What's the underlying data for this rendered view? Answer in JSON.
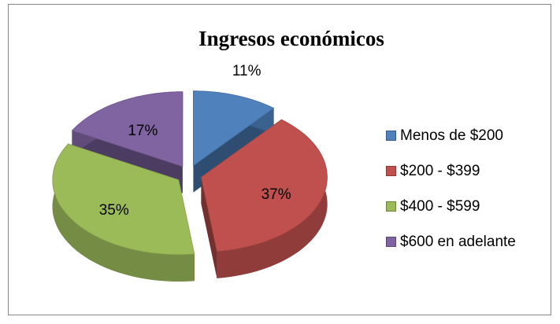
{
  "chart_data": {
    "type": "pie",
    "title": "Ingresos económicos",
    "categories": [
      "Menos de $200",
      "$200 - $399",
      "$400 - $599",
      "$600 en adelante"
    ],
    "values": [
      11,
      37,
      35,
      17
    ],
    "value_labels": [
      "11%",
      "37%",
      "35%",
      "17%"
    ],
    "colors": [
      "#4f81bd",
      "#c0504d",
      "#9bbb59",
      "#8064a2"
    ],
    "legend": "right"
  }
}
